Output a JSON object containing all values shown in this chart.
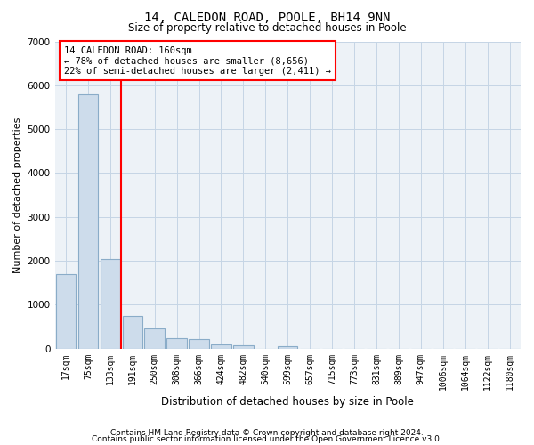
{
  "title": "14, CALEDON ROAD, POOLE, BH14 9NN",
  "subtitle": "Size of property relative to detached houses in Poole",
  "xlabel": "Distribution of detached houses by size in Poole",
  "ylabel": "Number of detached properties",
  "footnote1": "Contains HM Land Registry data © Crown copyright and database right 2024.",
  "footnote2": "Contains public sector information licensed under the Open Government Licence v3.0.",
  "bar_color": "#cddceb",
  "bar_edge_color": "#8aacc8",
  "grid_color": "#c5d5e5",
  "categories": [
    "17sqm",
    "75sqm",
    "133sqm",
    "191sqm",
    "250sqm",
    "308sqm",
    "366sqm",
    "424sqm",
    "482sqm",
    "540sqm",
    "599sqm",
    "657sqm",
    "715sqm",
    "773sqm",
    "831sqm",
    "889sqm",
    "947sqm",
    "1006sqm",
    "1064sqm",
    "1122sqm",
    "1180sqm"
  ],
  "values": [
    1700,
    5800,
    2050,
    750,
    460,
    230,
    210,
    95,
    65,
    0,
    55,
    0,
    0,
    0,
    0,
    0,
    0,
    0,
    0,
    0,
    0
  ],
  "red_line_x": 2.5,
  "annotation_line1": "14 CALEDON ROAD: 160sqm",
  "annotation_line2": "← 78% of detached houses are smaller (8,656)",
  "annotation_line3": "22% of semi-detached houses are larger (2,411) →",
  "ylim": [
    0,
    7000
  ],
  "yticks": [
    0,
    1000,
    2000,
    3000,
    4000,
    5000,
    6000,
    7000
  ],
  "bg_color": "#edf2f7",
  "title_fontsize": 10,
  "subtitle_fontsize": 8.5,
  "ylabel_fontsize": 8,
  "xlabel_fontsize": 8.5,
  "tick_fontsize": 7,
  "annotation_fontsize": 7.5,
  "footnote_fontsize": 6.5
}
